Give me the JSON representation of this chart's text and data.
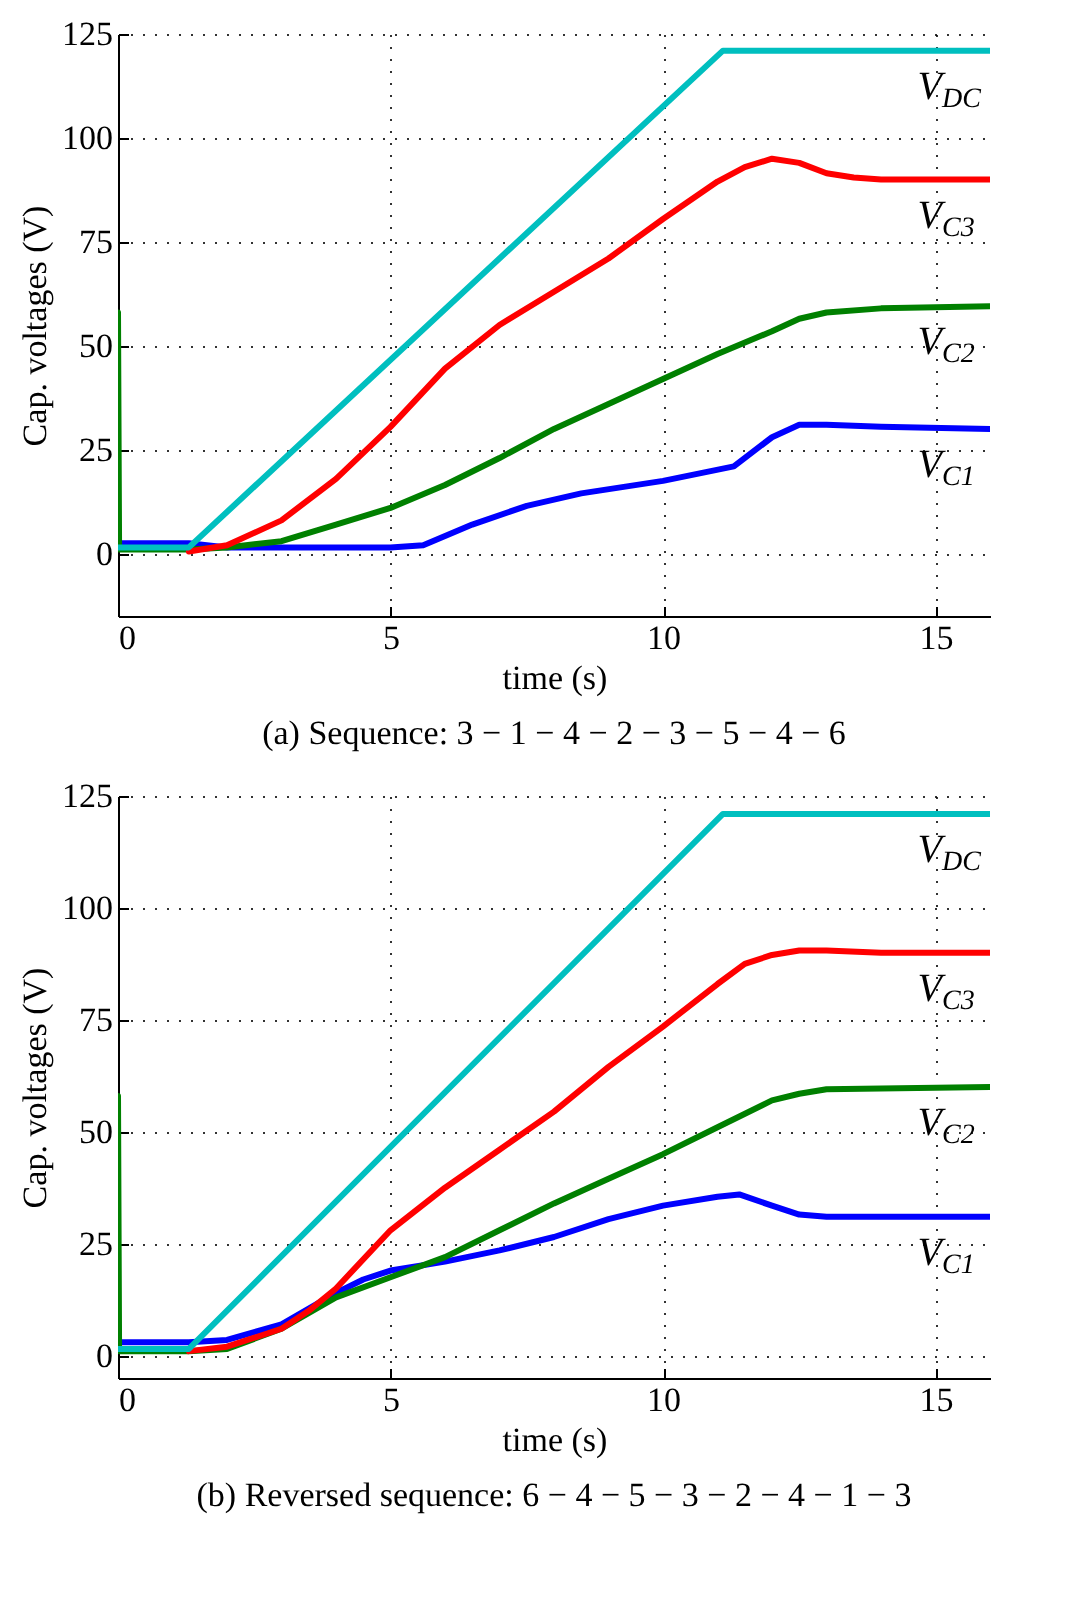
{
  "chart_data": [
    {
      "type": "line",
      "title": "(a) Sequence: 3 − 1 − 4 − 2 − 3 − 5 − 4 − 6",
      "xlabel": "time (s)",
      "ylabel": "Cap. voltages (V)",
      "xlim": [
        0,
        16
      ],
      "ylim": [
        -15,
        125
      ],
      "xticks": [
        0,
        5,
        10,
        15
      ],
      "yticks": [
        0,
        25,
        50,
        75,
        100,
        125
      ],
      "grid": true,
      "legend": false,
      "marker": "none",
      "line_style": "solid",
      "series": [
        {
          "name": "V$_{C1}$",
          "color": "#0000ff",
          "x": [
            0,
            1.3,
            2,
            5,
            5.6,
            6.5,
            7.5,
            8.5,
            10,
            11.3,
            12,
            12.5,
            13,
            14,
            16
          ],
          "values": [
            2.5,
            2.5,
            1.5,
            1.5,
            2,
            7,
            11.5,
            14.5,
            17.5,
            21,
            28,
            31,
            31,
            30.5,
            30
          ]
        },
        {
          "name": "V$_{C2}$",
          "color": "#008000",
          "x": [
            0,
            0.02,
            1.3,
            2,
            3,
            4,
            5,
            6,
            7,
            8,
            9,
            10,
            11,
            12,
            12.5,
            13,
            14,
            16
          ],
          "values": [
            58,
            1,
            1,
            1.5,
            3,
            7,
            11,
            16.5,
            23,
            30,
            36,
            42,
            48,
            53.5,
            56.5,
            58,
            59,
            59.5
          ]
        },
        {
          "name": "V$_{C3}$",
          "color": "#ff0000",
          "x": [
            1.3,
            2,
            3,
            4,
            5,
            6,
            7,
            8,
            9,
            10,
            11,
            11.5,
            12,
            12.5,
            13,
            13.5,
            14,
            16
          ],
          "values": [
            0.5,
            2,
            8,
            18,
            30.5,
            44.5,
            55,
            63,
            71,
            80.5,
            89.5,
            93,
            95,
            94,
            91.5,
            90.5,
            90,
            90
          ]
        },
        {
          "name": "V$_{DC}$",
          "color": "#00bfbf",
          "x": [
            0,
            1.3,
            11.1,
            16
          ],
          "values": [
            1.5,
            1.5,
            121,
            121
          ]
        }
      ]
    },
    {
      "type": "line",
      "title": "(b) Reversed sequence: 6 − 4 − 5 − 3 − 2 − 4 − 1 − 3",
      "xlabel": "time (s)",
      "ylabel": "Cap. voltages (V)",
      "xlim": [
        0,
        16
      ],
      "ylim": [
        -5,
        125
      ],
      "xticks": [
        0,
        5,
        10,
        15
      ],
      "yticks": [
        0,
        25,
        50,
        75,
        100,
        125
      ],
      "grid": true,
      "legend": false,
      "marker": "none",
      "line_style": "solid",
      "series": [
        {
          "name": "V$_{C1}$",
          "color": "#0000ff",
          "x": [
            0,
            1.3,
            2,
            3,
            4,
            4.5,
            5,
            6,
            7,
            8,
            9,
            10,
            11,
            11.4,
            12,
            12.5,
            13,
            16
          ],
          "values": [
            3,
            3,
            3.5,
            7,
            14,
            17,
            19,
            21,
            23.5,
            26.5,
            30.5,
            33.5,
            35.5,
            36,
            33.5,
            31.5,
            31,
            31
          ]
        },
        {
          "name": "V$_{C2}$",
          "color": "#008000",
          "x": [
            0,
            0.02,
            1.3,
            2,
            3,
            4,
            5,
            6,
            7,
            8,
            9,
            10,
            11,
            12,
            12.5,
            13,
            16
          ],
          "values": [
            58,
            1,
            1,
            1.5,
            6,
            13,
            17.5,
            22,
            28,
            34,
            39.5,
            45,
            51,
            57,
            58.5,
            59.5,
            60
          ]
        },
        {
          "name": "V$_{C3}$",
          "color": "#ff0000",
          "x": [
            1.3,
            2,
            3,
            3.5,
            4,
            5,
            6,
            7,
            8,
            9,
            10,
            11,
            11.5,
            12,
            12.5,
            13,
            14,
            16
          ],
          "values": [
            1,
            2,
            6,
            10,
            15,
            28,
            37.5,
            46,
            54.5,
            64.5,
            73.5,
            83,
            87.5,
            89.5,
            90.5,
            90.5,
            90,
            90
          ]
        },
        {
          "name": "V$_{DC}$",
          "color": "#00bfbf",
          "x": [
            0,
            1.3,
            11.1,
            16
          ],
          "values": [
            1.5,
            1.5,
            121,
            121
          ]
        }
      ]
    }
  ]
}
